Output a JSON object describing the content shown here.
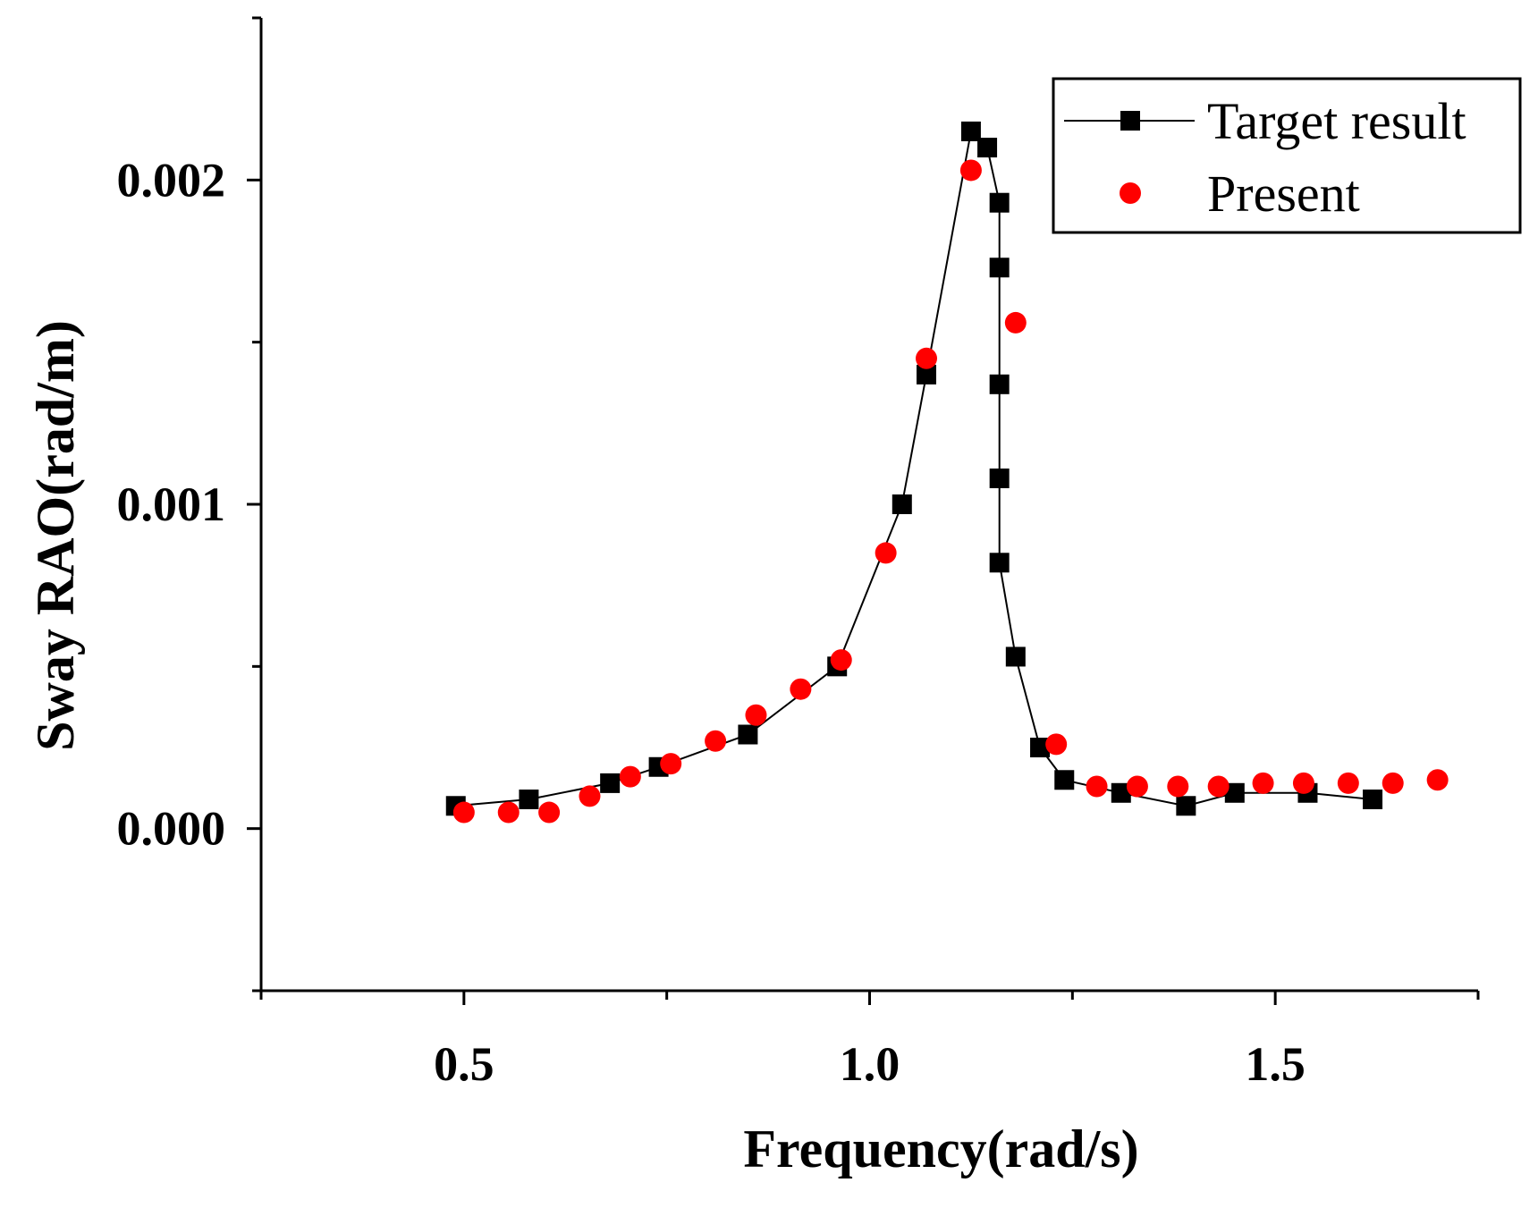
{
  "chart_data": {
    "type": "line",
    "title": "",
    "xlabel": "Frequency(rad/s)",
    "ylabel": "Sway RAO(rad/m)",
    "xlim": [
      0.25,
      1.75
    ],
    "ylim": [
      -0.0005,
      0.0025
    ],
    "x_ticks": [
      0.5,
      1.0,
      1.5
    ],
    "x_tick_labels": [
      "0.5",
      "1.0",
      "1.5"
    ],
    "y_ticks": [
      0.0,
      0.001,
      0.002
    ],
    "y_tick_labels": [
      "0.000",
      "0.001",
      "0.002"
    ],
    "grid": false,
    "legend_position": "top-right",
    "series": [
      {
        "name": "Target result",
        "style": "line-with-square-markers",
        "color": "#000000",
        "x": [
          0.49,
          0.58,
          0.68,
          0.74,
          0.85,
          0.96,
          1.04,
          1.07,
          1.125,
          1.145,
          1.16,
          1.16,
          1.16,
          1.16,
          1.16,
          1.18,
          1.21,
          1.24,
          1.31,
          1.39,
          1.45,
          1.54,
          1.62
        ],
        "y": [
          7e-05,
          9e-05,
          0.00014,
          0.00019,
          0.00029,
          0.0005,
          0.001,
          0.0014,
          0.00215,
          0.0021,
          0.00193,
          0.00173,
          0.00137,
          0.00108,
          0.00082,
          0.00053,
          0.00025,
          0.00015,
          0.00011,
          7e-05,
          0.00011,
          0.00011,
          9e-05
        ]
      },
      {
        "name": "Present",
        "style": "red-circle-markers",
        "color": "#ff0000",
        "x": [
          0.5,
          0.555,
          0.605,
          0.655,
          0.705,
          0.755,
          0.81,
          0.86,
          0.915,
          0.965,
          1.02,
          1.07,
          1.125,
          1.18,
          1.23,
          1.28,
          1.33,
          1.38,
          1.43,
          1.485,
          1.535,
          1.59,
          1.645,
          1.7
        ],
        "y": [
          5e-05,
          5e-05,
          5e-05,
          0.0001,
          0.00016,
          0.0002,
          0.00027,
          0.00035,
          0.00043,
          0.00052,
          0.00085,
          0.00145,
          0.00203,
          0.00156,
          0.00026,
          0.00013,
          0.00013,
          0.00013,
          0.00013,
          0.00014,
          0.00014,
          0.00014,
          0.00014,
          0.00015
        ]
      }
    ]
  }
}
